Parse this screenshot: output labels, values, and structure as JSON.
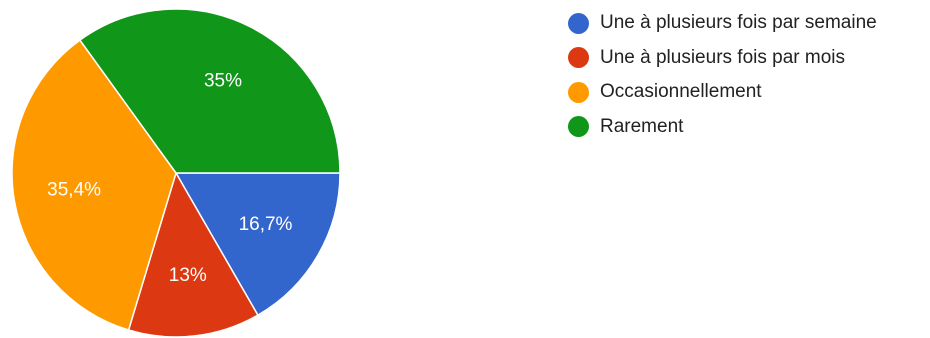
{
  "chart_data": {
    "type": "pie",
    "title": "",
    "slices": [
      {
        "label": "Une à plusieurs fois par semaine",
        "value": 16.7,
        "display": "16,7%",
        "color": "#3366cc"
      },
      {
        "label": "Une à plusieurs fois par mois",
        "value": 13,
        "display": "13%",
        "color": "#dc3912"
      },
      {
        "label": "Occasionnellement",
        "value": 35.4,
        "display": "35,4%",
        "color": "#ff9900"
      },
      {
        "label": "Rarement",
        "value": 35,
        "display": "35%",
        "color": "#109618"
      }
    ],
    "start_angle_deg": 0,
    "direction": "clockwise",
    "legend_position": "right"
  }
}
